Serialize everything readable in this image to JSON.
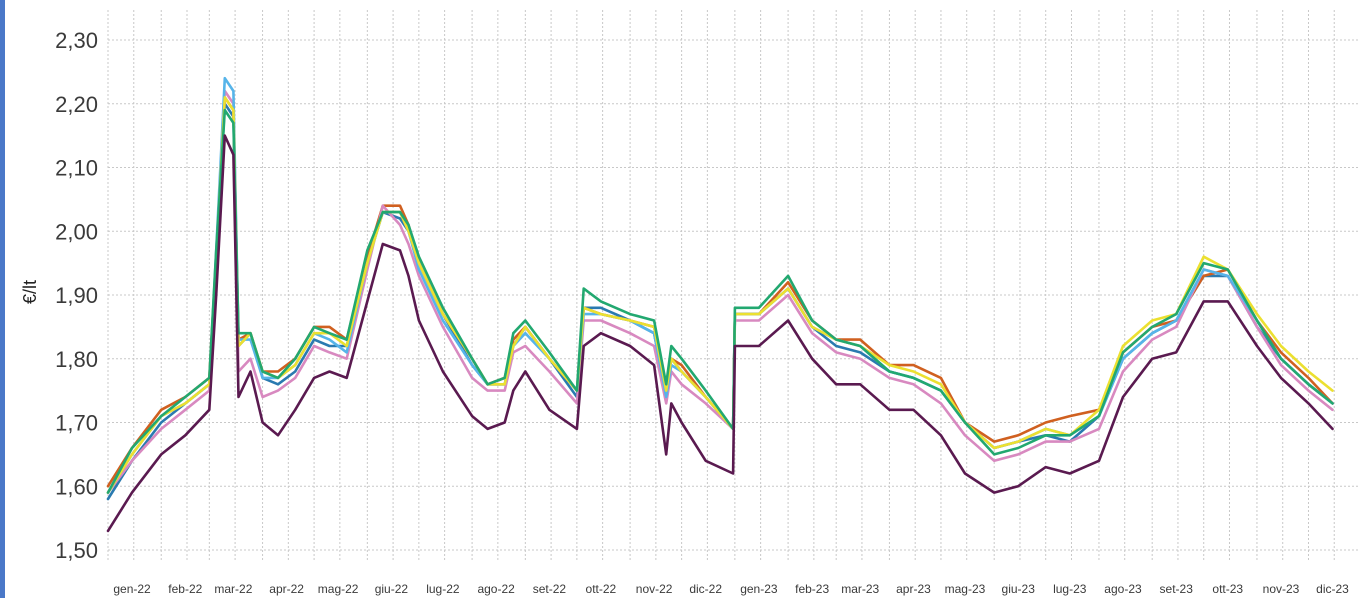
{
  "chart_data": {
    "type": "line",
    "title": "",
    "xlabel": "",
    "ylabel": "€/lt",
    "ylim": [
      1.5,
      2.3
    ],
    "grid": true,
    "y_ticks": [
      "1,50",
      "1,60",
      "1,70",
      "1,80",
      "1,90",
      "2,00",
      "2,10",
      "2,20",
      "2,30"
    ],
    "x_ticks": [
      "gen-22",
      "feb-22",
      "mar-22",
      "apr-22",
      "mag-22",
      "giu-22",
      "lug-22",
      "ago-22",
      "set-22",
      "ott-22",
      "nov-22",
      "dic-22",
      "gen-23",
      "feb-23",
      "mar-23",
      "apr-23",
      "mag-23",
      "giu-23",
      "lug-23",
      "ago-23",
      "set-23",
      "ott-23",
      "nov-23",
      "dic-23"
    ],
    "x": [
      "2022-01-01",
      "2022-01-15",
      "2022-02-01",
      "2022-02-15",
      "2022-03-01",
      "2022-03-05",
      "2022-03-10",
      "2022-03-15",
      "2022-03-18",
      "2022-03-25",
      "2022-04-01",
      "2022-04-10",
      "2022-04-20",
      "2022-05-01",
      "2022-05-10",
      "2022-05-20",
      "2022-06-01",
      "2022-06-10",
      "2022-06-20",
      "2022-06-25",
      "2022-07-01",
      "2022-07-15",
      "2022-08-01",
      "2022-08-10",
      "2022-08-20",
      "2022-08-25",
      "2022-09-01",
      "2022-09-15",
      "2022-10-01",
      "2022-10-05",
      "2022-10-15",
      "2022-11-01",
      "2022-11-15",
      "2022-11-22",
      "2022-11-25",
      "2022-12-01",
      "2022-12-15",
      "2022-12-31",
      "2023-01-01",
      "2023-01-15",
      "2023-02-01",
      "2023-02-15",
      "2023-03-01",
      "2023-03-15",
      "2023-04-01",
      "2023-04-15",
      "2023-05-01",
      "2023-05-15",
      "2023-06-01",
      "2023-06-15",
      "2023-07-01",
      "2023-07-15",
      "2023-08-01",
      "2023-08-15",
      "2023-09-01",
      "2023-09-15",
      "2023-10-01",
      "2023-10-15",
      "2023-11-01",
      "2023-11-15",
      "2023-12-01",
      "2023-12-15"
    ],
    "series": [
      {
        "color": "#2a7ab0",
        "values": [
          1.58,
          1.64,
          1.7,
          1.73,
          1.76,
          1.95,
          2.2,
          2.18,
          1.82,
          1.84,
          1.77,
          1.76,
          1.78,
          1.83,
          1.82,
          1.82,
          1.95,
          2.03,
          2.02,
          2.0,
          1.95,
          1.87,
          1.79,
          1.76,
          1.76,
          1.82,
          1.85,
          1.8,
          1.74,
          1.88,
          1.88,
          1.86,
          1.84,
          1.74,
          1.8,
          1.78,
          1.74,
          1.69,
          1.87,
          1.87,
          1.91,
          1.85,
          1.82,
          1.81,
          1.78,
          1.77,
          1.75,
          1.7,
          1.66,
          1.67,
          1.68,
          1.67,
          1.71,
          1.8,
          1.84,
          1.86,
          1.93,
          1.93,
          1.85,
          1.8,
          1.76,
          1.73
        ]
      },
      {
        "color": "#d06020",
        "values": [
          1.6,
          1.66,
          1.72,
          1.74,
          1.77,
          1.96,
          2.21,
          2.19,
          1.83,
          1.84,
          1.78,
          1.78,
          1.8,
          1.85,
          1.85,
          1.83,
          1.96,
          2.04,
          2.04,
          2.01,
          1.95,
          1.87,
          1.8,
          1.76,
          1.77,
          1.83,
          1.85,
          1.8,
          1.75,
          1.88,
          1.87,
          1.86,
          1.85,
          1.75,
          1.8,
          1.79,
          1.74,
          1.69,
          1.87,
          1.87,
          1.92,
          1.86,
          1.83,
          1.83,
          1.79,
          1.79,
          1.77,
          1.7,
          1.67,
          1.68,
          1.7,
          1.71,
          1.72,
          1.81,
          1.85,
          1.86,
          1.93,
          1.94,
          1.86,
          1.81,
          1.77,
          1.73
        ]
      },
      {
        "color": "#d889c0",
        "values": [
          1.59,
          1.64,
          1.69,
          1.72,
          1.75,
          1.94,
          2.22,
          2.2,
          1.78,
          1.8,
          1.74,
          1.75,
          1.77,
          1.82,
          1.81,
          1.8,
          1.94,
          2.04,
          2.01,
          1.98,
          1.93,
          1.85,
          1.77,
          1.75,
          1.75,
          1.81,
          1.82,
          1.78,
          1.73,
          1.86,
          1.86,
          1.84,
          1.82,
          1.73,
          1.78,
          1.76,
          1.73,
          1.69,
          1.86,
          1.86,
          1.9,
          1.84,
          1.81,
          1.8,
          1.77,
          1.76,
          1.73,
          1.68,
          1.64,
          1.65,
          1.67,
          1.67,
          1.69,
          1.78,
          1.83,
          1.85,
          1.94,
          1.93,
          1.85,
          1.79,
          1.75,
          1.72
        ]
      },
      {
        "color": "#56b4e9",
        "values": [
          1.59,
          1.65,
          1.71,
          1.73,
          1.76,
          1.97,
          2.24,
          2.22,
          1.83,
          1.83,
          1.77,
          1.77,
          1.79,
          1.84,
          1.83,
          1.81,
          1.95,
          2.03,
          2.03,
          2.0,
          1.94,
          1.86,
          1.79,
          1.76,
          1.76,
          1.82,
          1.84,
          1.8,
          1.75,
          1.87,
          1.87,
          1.86,
          1.84,
          1.74,
          1.79,
          1.78,
          1.74,
          1.69,
          1.87,
          1.87,
          1.91,
          1.85,
          1.83,
          1.82,
          1.78,
          1.77,
          1.75,
          1.7,
          1.66,
          1.67,
          1.69,
          1.68,
          1.71,
          1.8,
          1.84,
          1.86,
          1.94,
          1.93,
          1.86,
          1.8,
          1.76,
          1.73
        ]
      },
      {
        "color": "#ece030",
        "values": [
          1.59,
          1.65,
          1.71,
          1.73,
          1.76,
          1.96,
          2.21,
          2.19,
          1.82,
          1.84,
          1.78,
          1.77,
          1.79,
          1.84,
          1.84,
          1.82,
          1.95,
          2.03,
          2.03,
          2.0,
          1.95,
          1.87,
          1.8,
          1.76,
          1.76,
          1.82,
          1.85,
          1.8,
          1.75,
          1.88,
          1.87,
          1.86,
          1.85,
          1.75,
          1.8,
          1.78,
          1.74,
          1.69,
          1.87,
          1.87,
          1.91,
          1.85,
          1.83,
          1.82,
          1.79,
          1.78,
          1.76,
          1.7,
          1.66,
          1.67,
          1.69,
          1.68,
          1.72,
          1.82,
          1.86,
          1.87,
          1.96,
          1.94,
          1.87,
          1.82,
          1.78,
          1.75
        ]
      },
      {
        "color": "#22a870",
        "values": [
          1.59,
          1.66,
          1.71,
          1.74,
          1.77,
          1.97,
          2.19,
          2.17,
          1.84,
          1.84,
          1.78,
          1.77,
          1.8,
          1.85,
          1.84,
          1.83,
          1.97,
          2.03,
          2.03,
          2.01,
          1.96,
          1.88,
          1.8,
          1.76,
          1.77,
          1.84,
          1.86,
          1.81,
          1.75,
          1.91,
          1.89,
          1.87,
          1.86,
          1.76,
          1.82,
          1.8,
          1.75,
          1.69,
          1.88,
          1.88,
          1.93,
          1.86,
          1.83,
          1.82,
          1.78,
          1.77,
          1.75,
          1.7,
          1.65,
          1.66,
          1.68,
          1.68,
          1.71,
          1.81,
          1.85,
          1.87,
          1.95,
          1.94,
          1.86,
          1.8,
          1.76,
          1.73
        ]
      },
      {
        "color": "#5a1a50",
        "values": [
          1.53,
          1.59,
          1.65,
          1.68,
          1.72,
          1.9,
          2.15,
          2.12,
          1.74,
          1.78,
          1.7,
          1.68,
          1.72,
          1.77,
          1.78,
          1.77,
          1.89,
          1.98,
          1.97,
          1.93,
          1.86,
          1.78,
          1.71,
          1.69,
          1.7,
          1.75,
          1.78,
          1.72,
          1.69,
          1.82,
          1.84,
          1.82,
          1.79,
          1.65,
          1.73,
          1.7,
          1.64,
          1.62,
          1.82,
          1.82,
          1.86,
          1.8,
          1.76,
          1.76,
          1.72,
          1.72,
          1.68,
          1.62,
          1.59,
          1.6,
          1.63,
          1.62,
          1.64,
          1.74,
          1.8,
          1.81,
          1.89,
          1.89,
          1.82,
          1.77,
          1.73,
          1.69
        ]
      }
    ]
  }
}
